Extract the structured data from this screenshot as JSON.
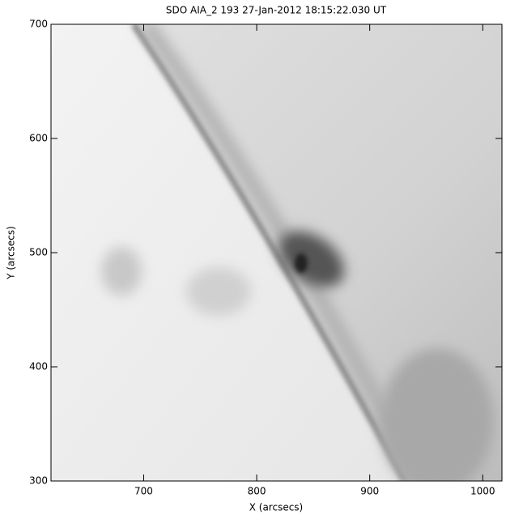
{
  "chart_data": {
    "type": "image",
    "title": "SDO AIA_2 193 27-Jan-2012 18:15:22.030 UT",
    "x_label": "X (arcsecs)",
    "y_label": "Y (arcsecs)",
    "xlim": [
      618,
      1017
    ],
    "ylim": [
      300,
      700
    ],
    "xticks": [
      700,
      800,
      900,
      1000
    ],
    "yticks": [
      300,
      400,
      500,
      600,
      700
    ]
  }
}
